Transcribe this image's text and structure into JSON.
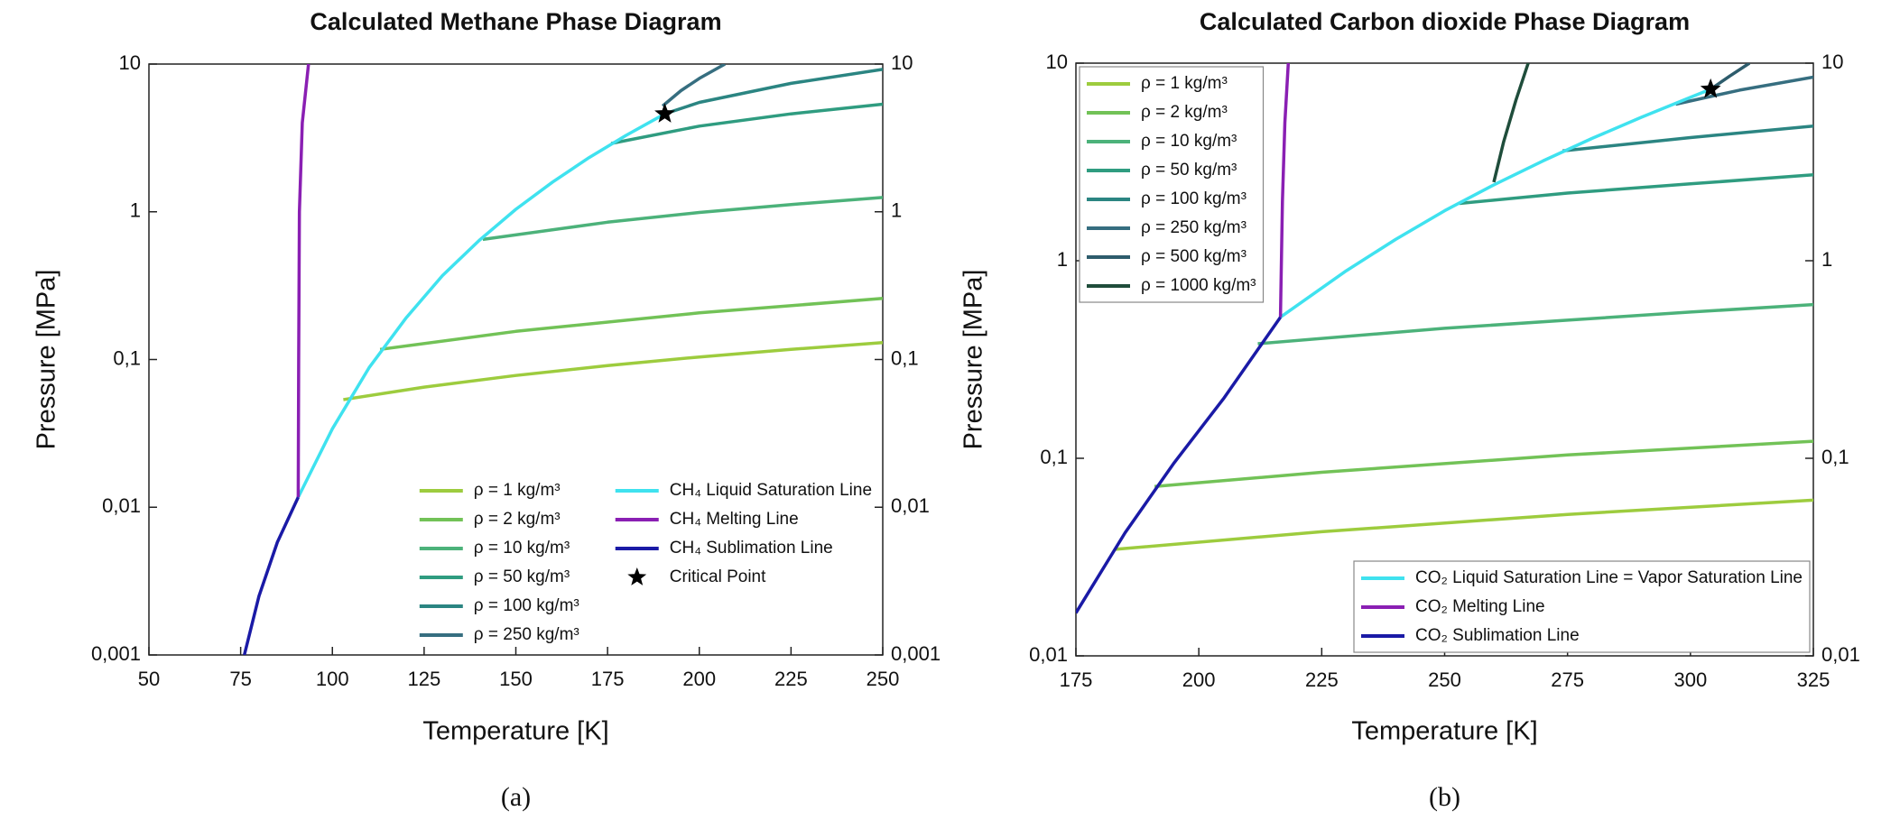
{
  "chart_data": [
    {
      "type": "line",
      "title": "Calculated Methane Phase Diagram",
      "panel_label": "(a)",
      "xlabel": "Temperature [K]",
      "ylabel": "Pressure [MPa]",
      "xlim": [
        50,
        250
      ],
      "xticks": [
        50,
        75,
        100,
        125,
        150,
        175,
        200,
        225,
        250
      ],
      "ylim": [
        0.001,
        10
      ],
      "ylog": true,
      "mirror_y": true,
      "yticks": [
        {
          "value": 0.001,
          "label": "0,001"
        },
        {
          "value": 0.01,
          "label": "0,01"
        },
        {
          "value": 0.1,
          "label": "0,1"
        },
        1,
        10
      ],
      "legend": "lower right",
      "legend_rows": 6,
      "legend_frame": false,
      "series": [
        {
          "name": "ρ = 1 kg/m³",
          "color": "#9dcc3e",
          "x": [
            103,
            125,
            150,
            175,
            200,
            225,
            250
          ],
          "values": [
            0.0535,
            0.065,
            0.078,
            0.091,
            0.104,
            0.117,
            0.13
          ]
        },
        {
          "name": "ρ = 2 kg/m³",
          "color": "#72c257",
          "x": [
            113,
            150,
            200,
            250
          ],
          "values": [
            0.117,
            0.155,
            0.207,
            0.259
          ]
        },
        {
          "name": "ρ = 10 kg/m³",
          "color": "#4cb27a",
          "x": [
            141,
            175,
            200,
            225,
            250
          ],
          "values": [
            0.65,
            0.85,
            0.99,
            1.12,
            1.25
          ]
        },
        {
          "name": "ρ = 50 kg/m³",
          "color": "#2f9c80",
          "x": [
            176,
            200,
            225,
            250
          ],
          "values": [
            2.9,
            3.8,
            4.6,
            5.35
          ]
        },
        {
          "name": "ρ = 100 kg/m³",
          "color": "#2b8582",
          "x": [
            190.6,
            200,
            225,
            250
          ],
          "values": [
            4.6,
            5.5,
            7.4,
            9.2
          ]
        },
        {
          "name": "ρ = 250 kg/m³",
          "color": "#366e80",
          "x": [
            190,
            195,
            200,
            207
          ],
          "values": [
            5.2,
            6.6,
            8,
            10
          ]
        },
        {
          "name": "CH₄ Liquid Saturation Line",
          "color": "#3fe2ef",
          "x": [
            90.7,
            100,
            110,
            120,
            130,
            140,
            150,
            160,
            170,
            180,
            190.6
          ],
          "values": [
            0.0117,
            0.034,
            0.088,
            0.19,
            0.37,
            0.64,
            1.04,
            1.59,
            2.33,
            3.29,
            4.6
          ]
        },
        {
          "name": "CH₄ Melting Line",
          "color": "#8a1fb3",
          "x": [
            90.7,
            90.8,
            91,
            91.8,
            93.5
          ],
          "values": [
            0.0117,
            0.1,
            1,
            4,
            10
          ]
        },
        {
          "name": "CH₄ Sublimation Line",
          "color": "#1a1aa6",
          "x": [
            76,
            80,
            85,
            90.7
          ],
          "values": [
            0.001,
            0.0025,
            0.0058,
            0.0117
          ]
        },
        {
          "name": "Critical Point",
          "type": "scatter",
          "marker": "star",
          "color": "#000000",
          "x": [
            190.6
          ],
          "values": [
            4.6
          ]
        }
      ]
    },
    {
      "type": "line",
      "title": "Calculated Carbon dioxide Phase Diagram",
      "panel_label": "(b)",
      "xlabel": "Temperature [K]",
      "ylabel": "Pressure [MPa]",
      "xlim": [
        175,
        325
      ],
      "xticks": [
        175,
        200,
        225,
        250,
        275,
        300,
        325
      ],
      "ylim": [
        0.01,
        10
      ],
      "ylog": true,
      "mirror_y": true,
      "yticks": [
        {
          "value": 0.01,
          "label": "0,01"
        },
        {
          "value": 0.1,
          "label": "0,1"
        },
        1,
        10
      ],
      "legend_frame": true,
      "series": [
        {
          "name": "ρ = 1 kg/m³",
          "legend": "upper left",
          "color": "#9dcc3e",
          "x": [
            183,
            225,
            275,
            325
          ],
          "values": [
            0.0346,
            0.0425,
            0.052,
            0.0614
          ]
        },
        {
          "name": "ρ = 2 kg/m³",
          "legend": "upper left",
          "color": "#72c257",
          "x": [
            191,
            225,
            275,
            325
          ],
          "values": [
            0.072,
            0.085,
            0.104,
            0.122
          ]
        },
        {
          "name": "ρ = 10 kg/m³",
          "legend": "upper left",
          "color": "#4cb27a",
          "x": [
            212,
            250,
            275,
            300,
            325
          ],
          "values": [
            0.38,
            0.455,
            0.5,
            0.55,
            0.6
          ]
        },
        {
          "name": "ρ = 50 kg/m³",
          "legend": "upper left",
          "color": "#2f9c80",
          "x": [
            253,
            275,
            300,
            325
          ],
          "values": [
            1.95,
            2.2,
            2.45,
            2.72
          ]
        },
        {
          "name": "ρ = 100 kg/m³",
          "legend": "upper left",
          "color": "#2b8582",
          "x": [
            274,
            300,
            325
          ],
          "values": [
            3.6,
            4.2,
            4.8
          ]
        },
        {
          "name": "ρ = 250 kg/m³",
          "legend": "upper left",
          "color": "#366e80",
          "x": [
            297,
            310,
            325
          ],
          "values": [
            6.2,
            7.3,
            8.5
          ]
        },
        {
          "name": "ρ = 500 kg/m³",
          "legend": "upper left",
          "color": "#2d5c6c",
          "x": [
            304.1,
            308,
            312
          ],
          "values": [
            7.38,
            8.6,
            10
          ]
        },
        {
          "name": "ρ = 1000 kg/m³",
          "legend": "upper left",
          "color": "#1f4d3b",
          "x": [
            260,
            262,
            264.5,
            267
          ],
          "values": [
            2.5,
            4,
            6.5,
            10
          ]
        },
        {
          "name": "CO₂ Liquid Saturation Line = Vapor Saturation Line",
          "legend": "lower right",
          "color": "#3fe2ef",
          "x": [
            216.6,
            230,
            240,
            250,
            260,
            270,
            280,
            290,
            300,
            304.1
          ],
          "values": [
            0.518,
            0.89,
            1.28,
            1.79,
            2.42,
            3.2,
            4.16,
            5.32,
            6.71,
            7.38
          ]
        },
        {
          "name": "CO₂ Melting Line",
          "legend": "lower right",
          "color": "#8a1fb3",
          "x": [
            216.6,
            217,
            217.5,
            218.2
          ],
          "values": [
            0.518,
            2,
            5,
            10
          ]
        },
        {
          "name": "CO₂ Sublimation Line",
          "legend": "lower right",
          "color": "#1a1aa6",
          "x": [
            175,
            185,
            195,
            205,
            216.6
          ],
          "values": [
            0.0165,
            0.042,
            0.095,
            0.2,
            0.518
          ]
        },
        {
          "type": "scatter",
          "marker": "star",
          "color": "#000000",
          "x": [
            304.1
          ],
          "values": [
            7.38
          ]
        }
      ]
    }
  ]
}
